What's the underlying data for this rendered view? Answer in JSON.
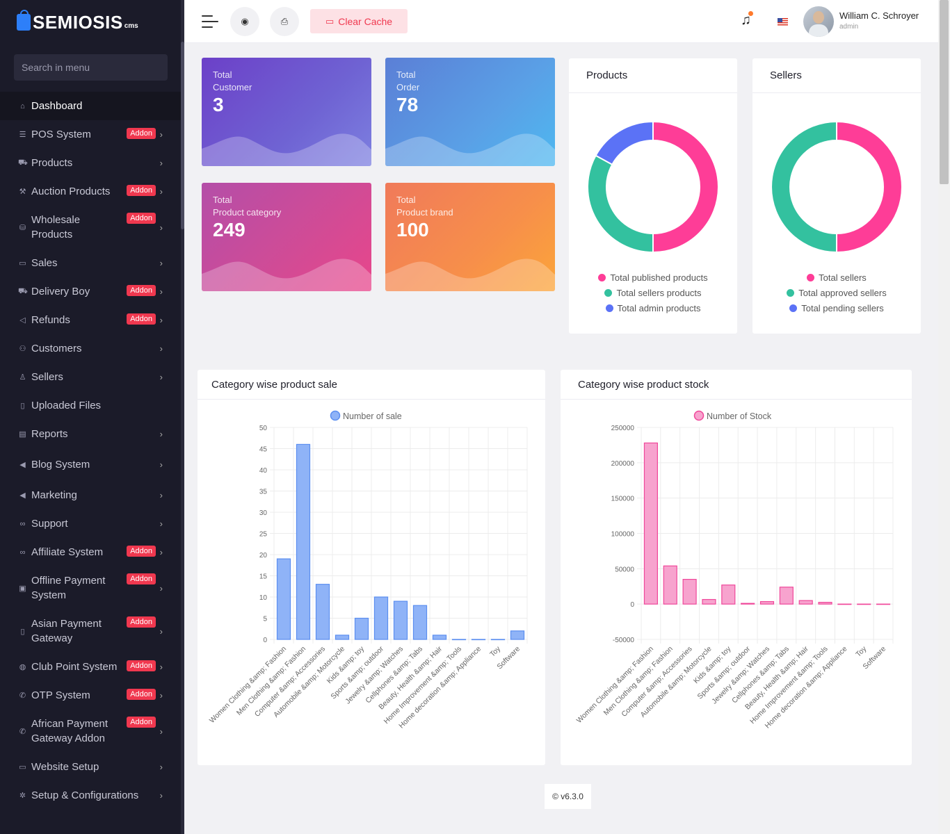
{
  "brand": {
    "name": "SEMIOSIS",
    "suffix": "cms"
  },
  "sidebar": {
    "search_placeholder": "Search in menu",
    "items": [
      {
        "label": "Dashboard",
        "icon": "home-icon",
        "glyph": "⌂",
        "addon": "",
        "chevron": ""
      },
      {
        "label": "POS System",
        "icon": "list-icon",
        "glyph": "☰",
        "addon": "Addon",
        "chevron": "›"
      },
      {
        "label": "Products",
        "icon": "cart-icon",
        "glyph": "⛟",
        "addon": "",
        "chevron": "›"
      },
      {
        "label": "Auction Products",
        "icon": "gavel-icon",
        "glyph": "⚒",
        "addon": "Addon",
        "chevron": "›"
      },
      {
        "label": "Wholesale Products",
        "icon": "shop-icon",
        "glyph": "⛁",
        "addon": "Addon",
        "chevron": "›"
      },
      {
        "label": "Sales",
        "icon": "wallet-icon",
        "glyph": "▭",
        "addon": "",
        "chevron": "›"
      },
      {
        "label": "Delivery Boy",
        "icon": "truck-icon",
        "glyph": "⛟",
        "addon": "Addon",
        "chevron": "›"
      },
      {
        "label": "Refunds",
        "icon": "backward-icon",
        "glyph": "◁",
        "addon": "Addon",
        "chevron": "›"
      },
      {
        "label": "Customers",
        "icon": "users-icon",
        "glyph": "⚇",
        "addon": "",
        "chevron": "›"
      },
      {
        "label": "Sellers",
        "icon": "user-icon",
        "glyph": "♙",
        "addon": "",
        "chevron": "›"
      },
      {
        "label": "Uploaded Files",
        "icon": "folder-icon",
        "glyph": "▯",
        "addon": "",
        "chevron": ""
      },
      {
        "label": "Reports",
        "icon": "file-icon",
        "glyph": "▤",
        "addon": "",
        "chevron": "›"
      },
      {
        "label": "Blog System",
        "icon": "bullhorn-icon",
        "glyph": "◀",
        "addon": "",
        "chevron": "›"
      },
      {
        "label": "Marketing",
        "icon": "megaphone-icon",
        "glyph": "◀",
        "addon": "",
        "chevron": "›"
      },
      {
        "label": "Support",
        "icon": "link-icon",
        "glyph": "∞",
        "addon": "",
        "chevron": "›"
      },
      {
        "label": "Affiliate System",
        "icon": "chain-icon",
        "glyph": "∞",
        "addon": "Addon",
        "chevron": "›"
      },
      {
        "label": "Offline Payment System",
        "icon": "money-icon",
        "glyph": "▣",
        "addon": "Addon",
        "chevron": "›"
      },
      {
        "label": "Asian Payment Gateway",
        "icon": "phone-icon",
        "glyph": "▯",
        "addon": "Addon",
        "chevron": "›"
      },
      {
        "label": "Club Point System",
        "icon": "coin-icon",
        "glyph": "◍",
        "addon": "Addon",
        "chevron": "›"
      },
      {
        "label": "OTP System",
        "icon": "call-icon",
        "glyph": "✆",
        "addon": "Addon",
        "chevron": "›"
      },
      {
        "label": "African Payment Gateway Addon",
        "icon": "receiver-icon",
        "glyph": "✆",
        "addon": "Addon",
        "chevron": "›"
      },
      {
        "label": "Website Setup",
        "icon": "desktop-icon",
        "glyph": "▭",
        "addon": "",
        "chevron": "›"
      },
      {
        "label": "Setup & Configurations",
        "icon": "dharma-wheel-icon",
        "glyph": "✲",
        "addon": "",
        "chevron": "›"
      }
    ]
  },
  "topbar": {
    "clear_cache": "Clear Cache",
    "user_name": "William C. Schroyer",
    "user_role": "admin"
  },
  "stats": [
    {
      "line1": "Total",
      "line2": "Customer",
      "value": "3"
    },
    {
      "line1": "Total",
      "line2": "Order",
      "value": "78"
    },
    {
      "line1": "Total",
      "line2": "Product category",
      "value": "249"
    },
    {
      "line1": "Total",
      "line2": "Product brand",
      "value": "100"
    }
  ],
  "products_card": {
    "title": "Products",
    "legend": [
      "Total published products",
      "Total sellers products",
      "Total admin products"
    ],
    "colors": [
      "#fe3d97",
      "#33c19f",
      "#5b72f6"
    ],
    "values": [
      50,
      33,
      17
    ]
  },
  "sellers_card": {
    "title": "Sellers",
    "legend": [
      "Total sellers",
      "Total approved sellers",
      "Total pending sellers"
    ],
    "colors": [
      "#fe3d97",
      "#33c19f",
      "#5b72f6"
    ],
    "values": [
      50,
      50,
      0
    ]
  },
  "chart_data": [
    {
      "type": "bar",
      "title": "Category wise product sale",
      "legend": "Number of sale",
      "color": "#8fb3f7",
      "border": "#5b8ef0",
      "categories": [
        "Women Clothing &amp; Fashion",
        "Men Clothing &amp; Fashion",
        "Computer &amp; Accessories",
        "Automobile &amp; Motorcycle",
        "Kids &amp; toy",
        "Sports &amp; outdoor",
        "Jewelry &amp; Watches",
        "Cellphones &amp; Tabs",
        "Beauty, Health &amp; Hair",
        "Home Improvement &amp; Tools",
        "Home decoration &amp; Appliance",
        "Toy",
        "Software"
      ],
      "values": [
        19,
        46,
        13,
        1,
        5,
        10,
        9,
        8,
        1,
        0,
        0,
        0,
        2
      ],
      "ylim": [
        0,
        50
      ],
      "yticks": [
        0,
        5,
        10,
        15,
        20,
        25,
        30,
        35,
        40,
        45,
        50
      ]
    },
    {
      "type": "bar",
      "title": "Category wise product stock",
      "legend": "Number of Stock",
      "color": "#f7a3ce",
      "border": "#f0479a",
      "categories": [
        "Women Clothing &amp; Fashion",
        "Men Clothing &amp; Fashion",
        "Computer &amp; Accessories",
        "Automobile &amp; Motorcycle",
        "Kids &amp; toy",
        "Sports &amp; outdoor",
        "Jewelry &amp; Watches",
        "Cellphones &amp; Tabs",
        "Beauty, Health &amp; Hair",
        "Home Improvement &amp; Tools",
        "Home decoration &amp; Appliance",
        "Toy",
        "Software"
      ],
      "values": [
        228000,
        54000,
        35000,
        6500,
        27000,
        1000,
        3500,
        24000,
        5000,
        2500,
        0,
        0,
        0
      ],
      "ylim": [
        -50000,
        250000
      ],
      "yticks": [
        -50000,
        0,
        50000,
        100000,
        150000,
        200000,
        250000
      ]
    }
  ],
  "footer": {
    "version": "© v6.3.0"
  }
}
